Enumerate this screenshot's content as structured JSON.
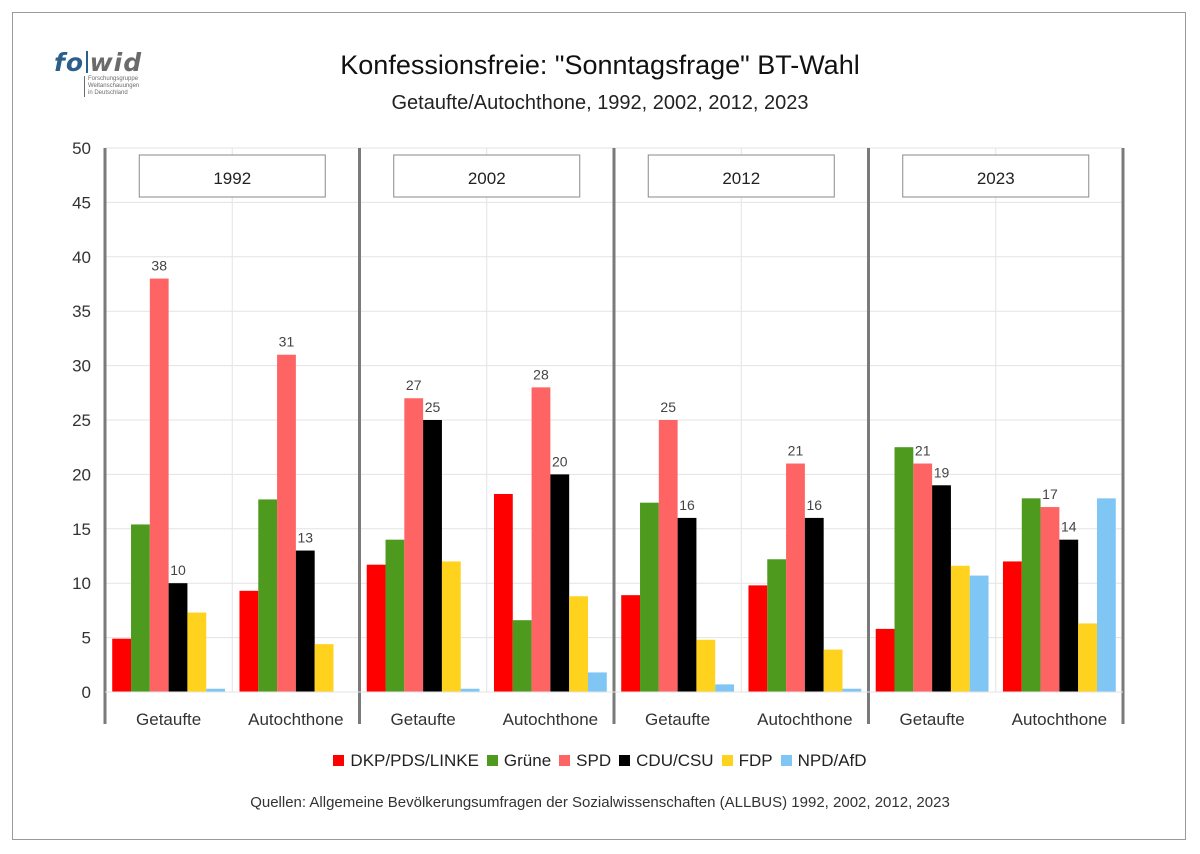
{
  "logo": {
    "word_left": "fo",
    "word_right": "wid",
    "tagline": [
      "Forschungsgruppe",
      "Weltanschauungen",
      "in Deutschland"
    ]
  },
  "source": "Quellen: Allgemeine Bevölkerungsumfragen der Sozialwissenschaften (ALLBUS) 1992, 2002, 2012, 2023",
  "chart_data": {
    "type": "bar",
    "title": "Konfessionsfreie: \"Sonntagsfrage\" BT-Wahl",
    "subtitle": "Getaufte/Autochthone, 1992, 2002, 2012, 2023",
    "ylim": [
      0,
      50
    ],
    "yticks": [
      0,
      5,
      10,
      15,
      20,
      25,
      30,
      35,
      40,
      45,
      50
    ],
    "grid": true,
    "legend_position": "bottom",
    "series": [
      {
        "name": "DKP/PDS/LINKE",
        "color": "#ff0000"
      },
      {
        "name": "Grüne",
        "color": "#4e9a1e"
      },
      {
        "name": "SPD",
        "color": "#ff6464"
      },
      {
        "name": "CDU/CSU",
        "color": "#000000"
      },
      {
        "name": "FDP",
        "color": "#ffd21e"
      },
      {
        "name": "NPD/AfD",
        "color": "#7fc6f5"
      }
    ],
    "panels": [
      {
        "year": "1992",
        "groups": [
          {
            "category": "Getaufte",
            "values": [
              4.9,
              15.4,
              38,
              10,
              7.3,
              0.3
            ],
            "labels": [
              null,
              null,
              "38",
              "10",
              null,
              null
            ]
          },
          {
            "category": "Autochthone",
            "values": [
              9.3,
              17.7,
              31,
              13,
              4.4,
              0
            ],
            "labels": [
              null,
              null,
              "31",
              "13",
              null,
              null
            ]
          }
        ]
      },
      {
        "year": "2002",
        "groups": [
          {
            "category": "Getaufte",
            "values": [
              11.7,
              14,
              27,
              25,
              12,
              0.3
            ],
            "labels": [
              null,
              null,
              "27",
              "25",
              null,
              null
            ]
          },
          {
            "category": "Autochthone",
            "values": [
              18.2,
              6.6,
              28,
              20,
              8.8,
              1.8
            ],
            "labels": [
              null,
              null,
              "28",
              "20",
              null,
              null
            ]
          }
        ]
      },
      {
        "year": "2012",
        "groups": [
          {
            "category": "Getaufte",
            "values": [
              8.9,
              17.4,
              25,
              16,
              4.8,
              0.7
            ],
            "labels": [
              null,
              null,
              "25",
              "16",
              null,
              null
            ]
          },
          {
            "category": "Autochthone",
            "values": [
              9.8,
              12.2,
              21,
              16,
              3.9,
              0.3
            ],
            "labels": [
              null,
              null,
              "21",
              "16",
              null,
              null
            ]
          }
        ]
      },
      {
        "year": "2023",
        "groups": [
          {
            "category": "Getaufte",
            "values": [
              5.8,
              22.5,
              21,
              19,
              11.6,
              10.7
            ],
            "labels": [
              null,
              null,
              "21",
              "19",
              null,
              null
            ]
          },
          {
            "category": "Autochthone",
            "values": [
              12,
              17.8,
              17,
              14,
              6.3,
              17.8
            ],
            "labels": [
              null,
              null,
              "17",
              "14",
              null,
              null
            ]
          }
        ]
      }
    ]
  }
}
